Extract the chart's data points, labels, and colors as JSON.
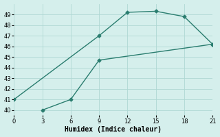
{
  "series1_x": [
    0,
    9,
    12,
    15,
    18,
    21
  ],
  "series1_y": [
    41.0,
    47.0,
    49.2,
    49.3,
    48.8,
    46.2
  ],
  "series2_x": [
    3,
    6,
    9,
    21
  ],
  "series2_y": [
    40.0,
    41.0,
    44.7,
    46.2
  ],
  "line_color": "#2a7d6f",
  "marker": "D",
  "marker_size": 2.5,
  "linewidth": 1.0,
  "xlabel": "Humidex (Indice chaleur)",
  "xlim": [
    0,
    21
  ],
  "ylim": [
    39.5,
    50.0
  ],
  "yticks": [
    40,
    41,
    42,
    43,
    44,
    45,
    46,
    47,
    48,
    49
  ],
  "xticks": [
    0,
    3,
    6,
    9,
    12,
    15,
    18,
    21
  ],
  "bg_color": "#d5efec",
  "grid_color": "#afd8d3",
  "tick_labelsize": 6,
  "xlabel_fontsize": 7
}
